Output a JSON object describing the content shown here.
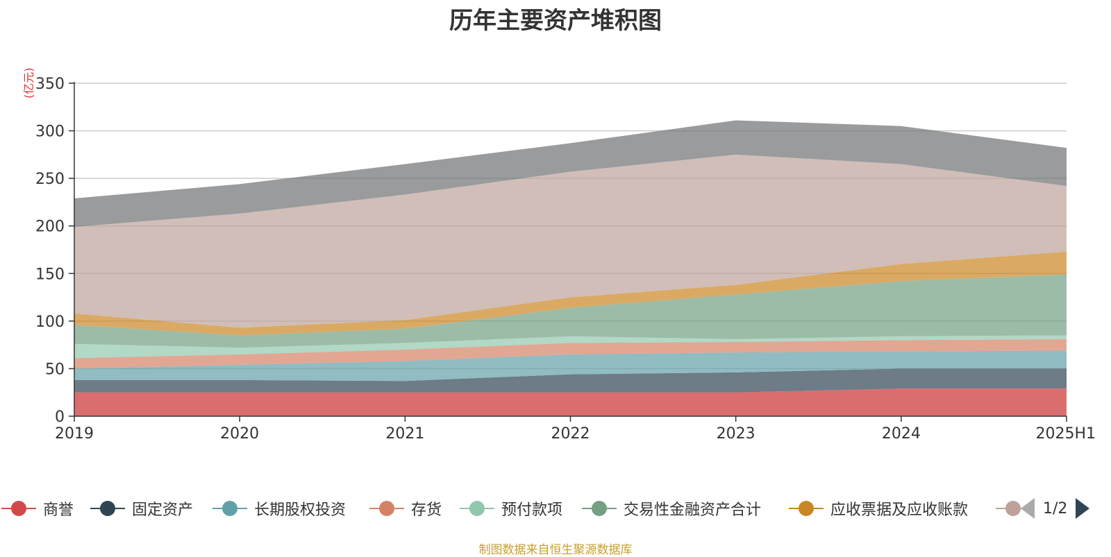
{
  "title": "历年主要资产堆积图",
  "source": "制图数据来自恒生聚源数据库",
  "pagination": {
    "text": "1/2"
  },
  "chart_data": {
    "type": "area",
    "stacked": true,
    "title": "历年主要资产堆积图",
    "ylabel": "(亿元)",
    "ylim": [
      0,
      350
    ],
    "yticks": [
      0,
      50,
      100,
      150,
      200,
      250,
      300,
      350
    ],
    "categories": [
      "2019",
      "2020",
      "2021",
      "2022",
      "2023",
      "2024",
      "2025H1"
    ],
    "grid": true,
    "legend_position": "bottom",
    "series": [
      {
        "name": "商誉",
        "color": "#d14a4a",
        "values": [
          25,
          25,
          25,
          25,
          25,
          29,
          29
        ]
      },
      {
        "name": "固定资产",
        "color": "#2f4554",
        "values": [
          13,
          13,
          12,
          19,
          21,
          21,
          21
        ]
      },
      {
        "name": "长期股权投资",
        "color": "#61a0a8",
        "values": [
          12,
          16,
          21,
          21,
          21,
          18,
          19
        ]
      },
      {
        "name": "存货",
        "color": "#d48265",
        "values": [
          11,
          11,
          12,
          12,
          11,
          12,
          12
        ]
      },
      {
        "name": "预付款项",
        "color": "#91c7ae",
        "values": [
          15,
          7,
          7,
          7,
          3,
          4,
          4
        ]
      },
      {
        "name": "交易性金融资产合计",
        "color": "#749f83",
        "values": [
          20,
          13,
          15,
          30,
          47,
          58,
          64
        ]
      },
      {
        "name": "应收票据及应收账款",
        "color": "#ca8622",
        "values": [
          12,
          8,
          9,
          11,
          10,
          18,
          24
        ]
      },
      {
        "name": "",
        "color": "#bda29a",
        "values": [
          91,
          120,
          132,
          132,
          137,
          105,
          69
        ]
      },
      {
        "name": "",
        "color": "#6e7074",
        "values": [
          30,
          31,
          32,
          30,
          36,
          40,
          40
        ]
      }
    ],
    "area_opacity": [
      0.8,
      0.7,
      0.7,
      0.7,
      0.7,
      0.7,
      0.7,
      0.7,
      0.7
    ],
    "top_series_color": "#6e7074"
  }
}
